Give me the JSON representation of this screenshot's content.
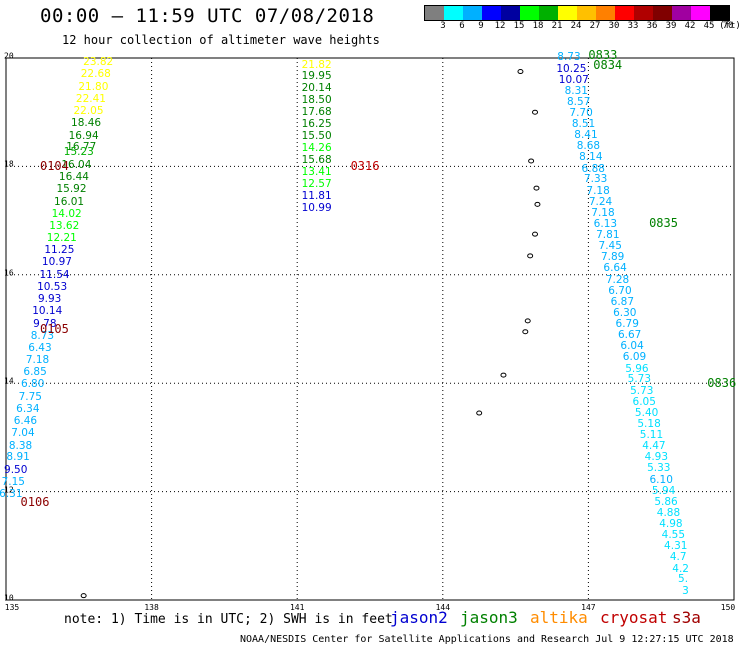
{
  "title": "00:00 – 11:59 UTC 07/08/2018",
  "subtitle": "12 hour collection of altimeter wave heights",
  "colorbar": {
    "colors": [
      "#7f7f7f",
      "#00ffff",
      "#00b0ff",
      "#0000ff",
      "#0000a0",
      "#00ff00",
      "#00b000",
      "#ffff00",
      "#ffc000",
      "#ff8000",
      "#ff0000",
      "#b00000",
      "#800000",
      "#a000a0",
      "#ff00ff",
      "#000000"
    ],
    "labels": [
      "3",
      "6",
      "9",
      "12",
      "15",
      "18",
      "21",
      "24",
      "27",
      "30",
      "33",
      "36",
      "39",
      "42",
      "45",
      "70",
      "(ft)"
    ]
  },
  "axes": {
    "lon_ticks": [
      "135",
      "138",
      "141",
      "144",
      "147",
      "150"
    ],
    "lat_ticks": [
      "10",
      "12",
      "14",
      "16",
      "18",
      "20"
    ],
    "lon_range": [
      135,
      150
    ],
    "lat_range": [
      10,
      20
    ],
    "grid": "dotted"
  },
  "note": "note: 1) Time is in UTC; 2) SWH is in feet",
  "legend": [
    {
      "name": "jason2",
      "color": "#0000d0"
    },
    {
      "name": "jason3",
      "color": "#008000"
    },
    {
      "name": "altika",
      "color": "#ff8c00"
    },
    {
      "name": "cryosat",
      "color": "#c00000"
    },
    {
      "name": "s3a",
      "color": "#a00000"
    }
  ],
  "credit": "NOAA/NESDIS Center for Satellite Applications and Research   Jul  9 12:27:15 UTC 2018",
  "tracks": [
    {
      "labels": [
        {
          "lon": 135.7,
          "lat": 18.0,
          "text": "0104",
          "color": "#8b0000"
        },
        {
          "lon": 135.7,
          "lat": 15.0,
          "text": "0105",
          "color": "#8b0000"
        },
        {
          "lon": 135.3,
          "lat": 11.8,
          "text": "0106",
          "color": "#8b0000"
        }
      ],
      "points": [
        {
          "lon": 136.9,
          "lat": 19.92,
          "v": "23.82",
          "c": "#ffff00"
        },
        {
          "lon": 136.85,
          "lat": 19.7,
          "v": "22.68",
          "c": "#ffff00"
        },
        {
          "lon": 136.8,
          "lat": 19.47,
          "v": "21.80",
          "c": "#ffff00"
        },
        {
          "lon": 136.75,
          "lat": 19.25,
          "v": "22.41",
          "c": "#ffff00"
        },
        {
          "lon": 136.7,
          "lat": 19.02,
          "v": "22.05",
          "c": "#ffff00"
        },
        {
          "lon": 136.65,
          "lat": 18.8,
          "v": "18.46",
          "c": "#008000"
        },
        {
          "lon": 136.6,
          "lat": 18.57,
          "v": "16.94",
          "c": "#008000"
        },
        {
          "lon": 136.55,
          "lat": 18.35,
          "v": "16.77",
          "c": "#008000"
        },
        {
          "lon": 136.5,
          "lat": 18.27,
          "v": "15.23",
          "c": "#00b000"
        },
        {
          "lon": 136.45,
          "lat": 18.02,
          "v": "16.04",
          "c": "#008000"
        },
        {
          "lon": 136.4,
          "lat": 17.8,
          "v": "16.44",
          "c": "#008000"
        },
        {
          "lon": 136.35,
          "lat": 17.58,
          "v": "15.92",
          "c": "#008000"
        },
        {
          "lon": 136.3,
          "lat": 17.35,
          "v": "16.01",
          "c": "#008000"
        },
        {
          "lon": 136.25,
          "lat": 17.13,
          "v": "14.02",
          "c": "#00ff00"
        },
        {
          "lon": 136.2,
          "lat": 16.9,
          "v": "13.62",
          "c": "#00ff00"
        },
        {
          "lon": 136.15,
          "lat": 16.68,
          "v": "12.21",
          "c": "#00ff00"
        },
        {
          "lon": 136.1,
          "lat": 16.45,
          "v": "11.25",
          "c": "#0000d0"
        },
        {
          "lon": 136.05,
          "lat": 16.23,
          "v": "10.97",
          "c": "#0000d0"
        },
        {
          "lon": 136.0,
          "lat": 16.0,
          "v": "11.54",
          "c": "#0000d0"
        },
        {
          "lon": 135.95,
          "lat": 15.78,
          "v": "10.53",
          "c": "#0000d0"
        },
        {
          "lon": 135.9,
          "lat": 15.55,
          "v": "9.93",
          "c": "#0000d0"
        },
        {
          "lon": 135.85,
          "lat": 15.33,
          "v": "10.14",
          "c": "#0000d0"
        },
        {
          "lon": 135.8,
          "lat": 15.1,
          "v": "9.78",
          "c": "#0000d0"
        },
        {
          "lon": 135.75,
          "lat": 14.88,
          "v": "8.73",
          "c": "#00b0ff"
        },
        {
          "lon": 135.7,
          "lat": 14.65,
          "v": "6.43",
          "c": "#00b0ff"
        },
        {
          "lon": 135.65,
          "lat": 14.43,
          "v": "7.18",
          "c": "#00b0ff"
        },
        {
          "lon": 135.6,
          "lat": 14.2,
          "v": "6.85",
          "c": "#00b0ff"
        },
        {
          "lon": 135.55,
          "lat": 13.98,
          "v": "6.80",
          "c": "#00b0ff"
        },
        {
          "lon": 135.5,
          "lat": 13.75,
          "v": "7.75",
          "c": "#00b0ff"
        },
        {
          "lon": 135.45,
          "lat": 13.53,
          "v": "6.34",
          "c": "#00b0ff"
        },
        {
          "lon": 135.4,
          "lat": 13.3,
          "v": "6.46",
          "c": "#00b0ff"
        },
        {
          "lon": 135.35,
          "lat": 13.08,
          "v": "7.04",
          "c": "#00b0ff"
        },
        {
          "lon": 135.3,
          "lat": 12.85,
          "v": "8.38",
          "c": "#00b0ff"
        },
        {
          "lon": 135.25,
          "lat": 12.63,
          "v": "8.91",
          "c": "#00b0ff"
        },
        {
          "lon": 135.2,
          "lat": 12.4,
          "v": "9.50",
          "c": "#0000d0"
        },
        {
          "lon": 135.15,
          "lat": 12.18,
          "v": "7.15",
          "c": "#00b0ff"
        },
        {
          "lon": 135.1,
          "lat": 11.95,
          "v": "6.31",
          "c": "#00b0ff"
        }
      ]
    },
    {
      "labels": [
        {
          "lon": 142.1,
          "lat": 18.0,
          "text": "0316",
          "color": "#c00000"
        }
      ],
      "points": [
        {
          "lon": 141.4,
          "lat": 19.88,
          "v": "21.82",
          "c": "#ffff00"
        },
        {
          "lon": 141.4,
          "lat": 19.66,
          "v": "19.95",
          "c": "#008000"
        },
        {
          "lon": 141.4,
          "lat": 19.44,
          "v": "20.14",
          "c": "#008000"
        },
        {
          "lon": 141.4,
          "lat": 19.22,
          "v": "18.50",
          "c": "#008000"
        },
        {
          "lon": 141.4,
          "lat": 19.0,
          "v": "17.68",
          "c": "#008000"
        },
        {
          "lon": 141.4,
          "lat": 18.78,
          "v": "16.25",
          "c": "#008000"
        },
        {
          "lon": 141.4,
          "lat": 18.56,
          "v": "15.50",
          "c": "#008000"
        },
        {
          "lon": 141.4,
          "lat": 18.34,
          "v": "14.26",
          "c": "#00ff00"
        },
        {
          "lon": 141.4,
          "lat": 18.12,
          "v": "15.68",
          "c": "#008000"
        },
        {
          "lon": 141.4,
          "lat": 17.9,
          "v": "13.41",
          "c": "#00ff00"
        },
        {
          "lon": 141.4,
          "lat": 17.68,
          "v": "12.57",
          "c": "#00ff00"
        },
        {
          "lon": 141.4,
          "lat": 17.46,
          "v": "11.81",
          "c": "#0000d0"
        },
        {
          "lon": 141.4,
          "lat": 17.24,
          "v": "10.99",
          "c": "#0000d0"
        }
      ]
    },
    {
      "labels": [
        {
          "lon": 147.0,
          "lat": 20.05,
          "text": "0833",
          "color": "#008000"
        },
        {
          "lon": 147.1,
          "lat": 19.87,
          "text": "0834",
          "color": "#008000"
        },
        {
          "lon": 148.25,
          "lat": 16.95,
          "text": "0835",
          "color": "#008000"
        },
        {
          "lon": 149.45,
          "lat": 14.0,
          "text": "0836",
          "color": "#008000"
        }
      ],
      "points": [
        {
          "lon": 146.6,
          "lat": 20.02,
          "v": "8.73",
          "c": "#00b0ff"
        },
        {
          "lon": 146.65,
          "lat": 19.8,
          "v": "10.25",
          "c": "#0000d0"
        },
        {
          "lon": 146.7,
          "lat": 19.6,
          "v": "10.07",
          "c": "#0000d0"
        },
        {
          "lon": 146.75,
          "lat": 19.4,
          "v": "8.31",
          "c": "#00b0ff"
        },
        {
          "lon": 146.8,
          "lat": 19.19,
          "v": "8.57",
          "c": "#00b0ff"
        },
        {
          "lon": 146.85,
          "lat": 18.99,
          "v": "7.70",
          "c": "#00b0ff"
        },
        {
          "lon": 146.9,
          "lat": 18.78,
          "v": "8.51",
          "c": "#00b0ff"
        },
        {
          "lon": 146.95,
          "lat": 18.58,
          "v": "8.41",
          "c": "#00b0ff"
        },
        {
          "lon": 147.0,
          "lat": 18.37,
          "v": "8.68",
          "c": "#00b0ff"
        },
        {
          "lon": 147.05,
          "lat": 18.17,
          "v": "8.14",
          "c": "#00b0ff"
        },
        {
          "lon": 147.1,
          "lat": 17.96,
          "v": "6.88",
          "c": "#00b0ff"
        },
        {
          "lon": 147.15,
          "lat": 17.76,
          "v": "7.33",
          "c": "#00b0ff"
        },
        {
          "lon": 147.2,
          "lat": 17.55,
          "v": "7.18",
          "c": "#00b0ff"
        },
        {
          "lon": 147.25,
          "lat": 17.35,
          "v": "7.24",
          "c": "#00b0ff"
        },
        {
          "lon": 147.3,
          "lat": 17.14,
          "v": "7.18",
          "c": "#00b0ff"
        },
        {
          "lon": 147.35,
          "lat": 16.94,
          "v": "6.13",
          "c": "#00b0ff"
        },
        {
          "lon": 147.4,
          "lat": 16.73,
          "v": "7.81",
          "c": "#00b0ff"
        },
        {
          "lon": 147.45,
          "lat": 16.53,
          "v": "7.45",
          "c": "#00b0ff"
        },
        {
          "lon": 147.5,
          "lat": 16.32,
          "v": "7.89",
          "c": "#00b0ff"
        },
        {
          "lon": 147.55,
          "lat": 16.12,
          "v": "6.64",
          "c": "#00b0ff"
        },
        {
          "lon": 147.6,
          "lat": 15.91,
          "v": "7.28",
          "c": "#00b0ff"
        },
        {
          "lon": 147.65,
          "lat": 15.71,
          "v": "6.70",
          "c": "#00b0ff"
        },
        {
          "lon": 147.7,
          "lat": 15.5,
          "v": "6.87",
          "c": "#00b0ff"
        },
        {
          "lon": 147.75,
          "lat": 15.3,
          "v": "6.30",
          "c": "#00b0ff"
        },
        {
          "lon": 147.8,
          "lat": 15.09,
          "v": "6.79",
          "c": "#00b0ff"
        },
        {
          "lon": 147.85,
          "lat": 14.89,
          "v": "6.67",
          "c": "#00b0ff"
        },
        {
          "lon": 147.9,
          "lat": 14.68,
          "v": "6.04",
          "c": "#00b0ff"
        },
        {
          "lon": 147.95,
          "lat": 14.48,
          "v": "6.09",
          "c": "#00b0ff"
        },
        {
          "lon": 148.0,
          "lat": 14.27,
          "v": "5.96",
          "c": "#00e0ff"
        },
        {
          "lon": 148.05,
          "lat": 14.07,
          "v": "5.73",
          "c": "#00e0ff"
        },
        {
          "lon": 148.1,
          "lat": 13.86,
          "v": "5.73",
          "c": "#00e0ff"
        },
        {
          "lon": 148.15,
          "lat": 13.66,
          "v": "6.05",
          "c": "#00e0ff"
        },
        {
          "lon": 148.2,
          "lat": 13.45,
          "v": "5.40",
          "c": "#00e0ff"
        },
        {
          "lon": 148.25,
          "lat": 13.25,
          "v": "5.18",
          "c": "#00e0ff"
        },
        {
          "lon": 148.3,
          "lat": 13.04,
          "v": "5.11",
          "c": "#00e0ff"
        },
        {
          "lon": 148.35,
          "lat": 12.84,
          "v": "4.47",
          "c": "#00e0ff"
        },
        {
          "lon": 148.4,
          "lat": 12.63,
          "v": "4.93",
          "c": "#00e0ff"
        },
        {
          "lon": 148.45,
          "lat": 12.43,
          "v": "5.33",
          "c": "#00e0ff"
        },
        {
          "lon": 148.5,
          "lat": 12.22,
          "v": "6.10",
          "c": "#00b0ff"
        },
        {
          "lon": 148.55,
          "lat": 12.02,
          "v": "5.94",
          "c": "#00e0ff"
        },
        {
          "lon": 148.6,
          "lat": 11.81,
          "v": "5.86",
          "c": "#00e0ff"
        },
        {
          "lon": 148.65,
          "lat": 11.61,
          "v": "4.88",
          "c": "#00e0ff"
        },
        {
          "lon": 148.7,
          "lat": 11.4,
          "v": "4.98",
          "c": "#00e0ff"
        },
        {
          "lon": 148.75,
          "lat": 11.2,
          "v": "4.55",
          "c": "#00e0ff"
        },
        {
          "lon": 148.8,
          "lat": 10.99,
          "v": "4.31",
          "c": "#00e0ff"
        },
        {
          "lon": 148.85,
          "lat": 10.79,
          "v": "4.7",
          "c": "#00e0ff"
        },
        {
          "lon": 148.9,
          "lat": 10.58,
          "v": "4.2",
          "c": "#00e0ff"
        },
        {
          "lon": 148.95,
          "lat": 10.38,
          "v": "5.",
          "c": "#00e0ff"
        },
        {
          "lon": 149.0,
          "lat": 10.17,
          "v": "3",
          "c": "#00e0ff"
        }
      ]
    }
  ],
  "islands": [
    {
      "lon": 145.6,
      "lat": 19.75
    },
    {
      "lon": 145.9,
      "lat": 19.0
    },
    {
      "lon": 145.82,
      "lat": 18.1
    },
    {
      "lon": 145.93,
      "lat": 17.6
    },
    {
      "lon": 145.95,
      "lat": 17.3
    },
    {
      "lon": 145.9,
      "lat": 16.75
    },
    {
      "lon": 145.8,
      "lat": 16.35
    },
    {
      "lon": 145.75,
      "lat": 15.15
    },
    {
      "lon": 145.7,
      "lat": 14.95
    },
    {
      "lon": 145.25,
      "lat": 14.15
    },
    {
      "lon": 144.75,
      "lat": 13.45
    },
    {
      "lon": 136.6,
      "lat": 10.08
    }
  ]
}
